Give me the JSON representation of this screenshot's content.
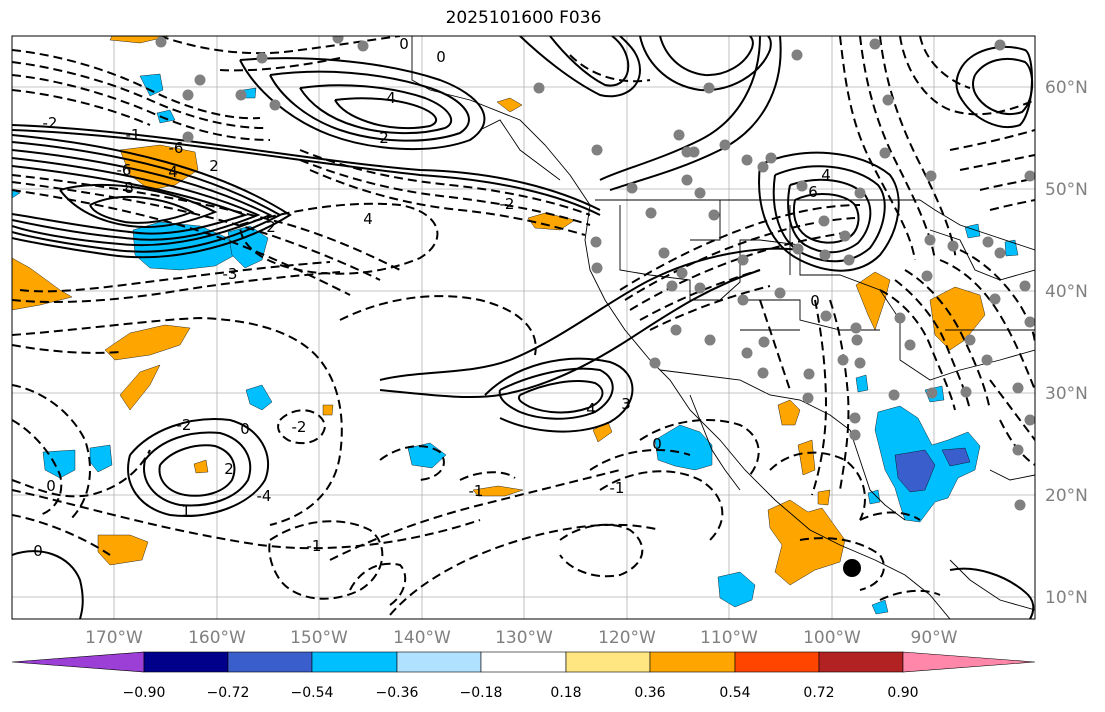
{
  "title": "2025101600 F036",
  "lon_ticks": [
    "170°W",
    "160°W",
    "150°W",
    "140°W",
    "130°W",
    "120°W",
    "110°W",
    "100°W",
    "90°W"
  ],
  "lat_ticks": [
    "60°N",
    "50°N",
    "40°N",
    "30°N",
    "20°N",
    "10°N"
  ],
  "colorbar": {
    "labels": [
      "−0.90",
      "−0.72",
      "−0.54",
      "−0.36",
      "−0.18",
      "0.18",
      "0.36",
      "0.54",
      "0.72",
      "0.90"
    ],
    "colors": [
      "#9b3fd6",
      "#00008b",
      "#3a5fcd",
      "#00bfff",
      "#b0e2ff",
      "#ffffff",
      "#ffe680",
      "#ffa500",
      "#ff4500",
      "#b22222",
      "#ff88aa"
    ]
  },
  "contour_labels": [
    "0",
    "0",
    "-2",
    "4",
    "2",
    "4",
    "-6",
    "2",
    "8",
    "-6",
    "4",
    "6",
    "4",
    "-1",
    "-3",
    "4",
    "-2",
    "0",
    "2",
    "-4",
    "3",
    "0",
    "-2",
    "0",
    "-2",
    "1",
    "-1",
    "0",
    "-1",
    "-1",
    "0",
    "2"
  ],
  "fill_colors": {
    "orange": "#ffa500",
    "blue": "#00bfff",
    "dark_blue": "#3a5fcd",
    "dot": "#808080"
  }
}
